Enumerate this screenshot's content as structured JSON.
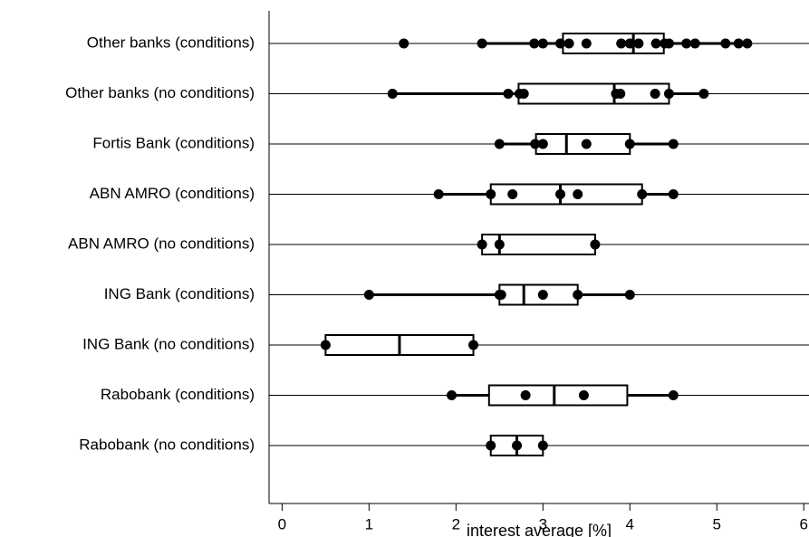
{
  "chart_data": {
    "type": "boxplot",
    "xlabel": "interest average [%]",
    "xlim": [
      -0.15,
      6.06
    ],
    "xticks": [
      0,
      1,
      2,
      3,
      4,
      5,
      6
    ],
    "grid": true,
    "color": "#000000",
    "categories": [
      "Other banks (conditions)",
      "Other banks (no conditions)",
      "Fortis Bank (conditions)",
      "ABN AMRO (conditions)",
      "ABN AMRO (no conditions)",
      "ING Bank (conditions)",
      "ING Bank (no conditions)",
      "Rabobank (conditions)",
      "Rabobank (no conditions)"
    ],
    "boxes": [
      {
        "whisker_low": 2.3,
        "q1": 3.23,
        "median": 4.04,
        "q3": 4.39,
        "whisker_high": 5.35,
        "points": [
          1.4,
          2.3,
          2.9,
          3.0,
          3.2,
          3.3,
          3.5,
          3.9,
          4.0,
          4.1,
          4.3,
          4.4,
          4.45,
          4.65,
          4.75,
          5.1,
          5.25,
          5.35
        ]
      },
      {
        "whisker_low": 1.27,
        "q1": 2.72,
        "median": 3.82,
        "q3": 4.45,
        "whisker_high": 4.85,
        "points": [
          1.27,
          2.6,
          2.73,
          2.78,
          3.84,
          3.89,
          4.29,
          4.45,
          4.85
        ]
      },
      {
        "whisker_low": 2.5,
        "q1": 2.92,
        "median": 3.27,
        "q3": 4.0,
        "whisker_high": 4.5,
        "points": [
          2.5,
          2.91,
          3.0,
          3.5,
          4.0,
          4.5
        ]
      },
      {
        "whisker_low": 1.8,
        "q1": 2.4,
        "median": 3.2,
        "q3": 4.14,
        "whisker_high": 4.5,
        "points": [
          1.8,
          2.4,
          2.65,
          3.2,
          3.4,
          4.14,
          4.5
        ]
      },
      {
        "whisker_low": 2.3,
        "q1": 2.3,
        "median": 2.5,
        "q3": 3.6,
        "whisker_high": 3.6,
        "points": [
          2.3,
          2.5,
          3.6
        ]
      },
      {
        "whisker_low": 1.0,
        "q1": 2.5,
        "median": 2.78,
        "q3": 3.4,
        "whisker_high": 4.0,
        "points": [
          1.0,
          2.5,
          2.52,
          3.0,
          3.4,
          4.0
        ]
      },
      {
        "whisker_low": 0.5,
        "q1": 0.5,
        "median": 1.35,
        "q3": 2.2,
        "whisker_high": 2.2,
        "points": [
          0.5,
          2.2
        ]
      },
      {
        "whisker_low": 1.95,
        "q1": 2.38,
        "median": 3.13,
        "q3": 3.97,
        "whisker_high": 4.5,
        "points": [
          1.95,
          2.8,
          3.47,
          4.5
        ]
      },
      {
        "whisker_low": 2.4,
        "q1": 2.4,
        "median": 2.7,
        "q3": 3.0,
        "whisker_high": 3.0,
        "points": [
          2.4,
          2.7,
          3.0
        ]
      }
    ]
  }
}
